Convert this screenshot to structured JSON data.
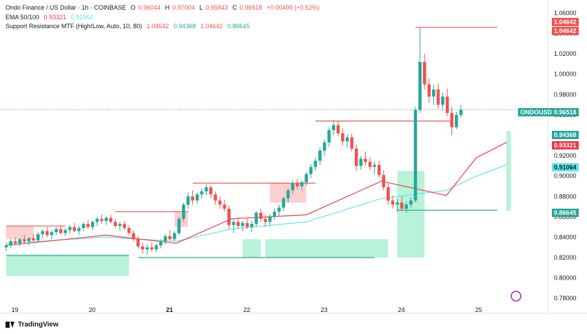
{
  "header": {
    "symbol_line": "Ondo Finance / US Dollar · 1h · COINBASE",
    "ohlc": {
      "o_label": "O",
      "o": "0.96044",
      "h_label": "H",
      "h": "0.97004",
      "l_label": "L",
      "l": "0.95843",
      "c_label": "C",
      "c": "0.96518",
      "chg": "+0.00499 (+0.52%)"
    },
    "ema_line": {
      "label": "EMA 50/100",
      "v1": "0.93321",
      "v2": "0.91064"
    },
    "sr_line": {
      "label": "Support Resistance MTF (High/Low, Auto, 10, 80)",
      "v1": "1.04642",
      "v2": "0.94368",
      "v3": "1.04642",
      "v4": "0.86645"
    }
  },
  "price_badges": {
    "top_a": "1.04642",
    "top_b": "1.04642",
    "ticker": "ONDOUSD",
    "last": "0.96518",
    "sr_low": "0.94368",
    "ema50": "0.93321",
    "ema100": "0.91064",
    "support": "0.86645"
  },
  "branding": {
    "name": "TradingView"
  },
  "colors": {
    "up": "#26a69a",
    "down": "#ef5350",
    "ema50": "#f23645",
    "ema100": "#5ee7ea",
    "resistance": "#f7a9a8",
    "support": "#7ee8b8"
  },
  "chart_data": {
    "type": "candlestick",
    "ylim": [
      0.77,
      1.062
    ],
    "y_ticks": [
      "1.06000",
      "1.04000",
      "1.02000",
      "1.00000",
      "0.98000",
      "0.96000",
      "0.94000",
      "0.92000",
      "0.90000",
      "0.88000",
      "0.86000",
      "0.84000",
      "0.82000",
      "0.80000",
      "0.78000"
    ],
    "x_ticks": [
      "19",
      "20",
      "21",
      "22",
      "23",
      "24",
      "25"
    ],
    "ohlc": [
      [
        0.83,
        0.834,
        0.826,
        0.832
      ],
      [
        0.832,
        0.838,
        0.829,
        0.836
      ],
      [
        0.836,
        0.84,
        0.832,
        0.834
      ],
      [
        0.834,
        0.839,
        0.831,
        0.838
      ],
      [
        0.838,
        0.842,
        0.834,
        0.836
      ],
      [
        0.836,
        0.84,
        0.832,
        0.839
      ],
      [
        0.839,
        0.843,
        0.836,
        0.837
      ],
      [
        0.837,
        0.845,
        0.835,
        0.843
      ],
      [
        0.843,
        0.848,
        0.839,
        0.846
      ],
      [
        0.846,
        0.85,
        0.84,
        0.842
      ],
      [
        0.842,
        0.847,
        0.838,
        0.845
      ],
      [
        0.845,
        0.85,
        0.842,
        0.848
      ],
      [
        0.848,
        0.852,
        0.843,
        0.844
      ],
      [
        0.844,
        0.849,
        0.841,
        0.847
      ],
      [
        0.847,
        0.852,
        0.844,
        0.85
      ],
      [
        0.85,
        0.854,
        0.845,
        0.846
      ],
      [
        0.846,
        0.851,
        0.842,
        0.849
      ],
      [
        0.849,
        0.855,
        0.846,
        0.853
      ],
      [
        0.853,
        0.857,
        0.848,
        0.85
      ],
      [
        0.85,
        0.856,
        0.847,
        0.855
      ],
      [
        0.855,
        0.86,
        0.851,
        0.858
      ],
      [
        0.858,
        0.862,
        0.853,
        0.856
      ],
      [
        0.856,
        0.861,
        0.852,
        0.859
      ],
      [
        0.859,
        0.862,
        0.854,
        0.855
      ],
      [
        0.855,
        0.858,
        0.849,
        0.851
      ],
      [
        0.851,
        0.855,
        0.846,
        0.853
      ],
      [
        0.853,
        0.856,
        0.847,
        0.849
      ],
      [
        0.849,
        0.852,
        0.842,
        0.844
      ],
      [
        0.844,
        0.847,
        0.836,
        0.838
      ],
      [
        0.838,
        0.841,
        0.829,
        0.831
      ],
      [
        0.831,
        0.835,
        0.824,
        0.828
      ],
      [
        0.828,
        0.833,
        0.823,
        0.83
      ],
      [
        0.83,
        0.835,
        0.826,
        0.828
      ],
      [
        0.828,
        0.834,
        0.825,
        0.832
      ],
      [
        0.832,
        0.838,
        0.829,
        0.836
      ],
      [
        0.836,
        0.843,
        0.833,
        0.841
      ],
      [
        0.841,
        0.847,
        0.837,
        0.838
      ],
      [
        0.838,
        0.846,
        0.836,
        0.844
      ],
      [
        0.844,
        0.86,
        0.842,
        0.858
      ],
      [
        0.858,
        0.874,
        0.855,
        0.872
      ],
      [
        0.872,
        0.884,
        0.868,
        0.88
      ],
      [
        0.88,
        0.886,
        0.872,
        0.876
      ],
      [
        0.876,
        0.884,
        0.873,
        0.882
      ],
      [
        0.882,
        0.888,
        0.878,
        0.885
      ],
      [
        0.885,
        0.892,
        0.881,
        0.889
      ],
      [
        0.889,
        0.891,
        0.878,
        0.882
      ],
      [
        0.882,
        0.885,
        0.872,
        0.876
      ],
      [
        0.876,
        0.88,
        0.868,
        0.872
      ],
      [
        0.872,
        0.877,
        0.865,
        0.868
      ],
      [
        0.868,
        0.871,
        0.848,
        0.852
      ],
      [
        0.852,
        0.858,
        0.844,
        0.855
      ],
      [
        0.855,
        0.86,
        0.848,
        0.851
      ],
      [
        0.851,
        0.856,
        0.846,
        0.854
      ],
      [
        0.854,
        0.858,
        0.848,
        0.85
      ],
      [
        0.85,
        0.856,
        0.845,
        0.853
      ],
      [
        0.853,
        0.866,
        0.85,
        0.864
      ],
      [
        0.864,
        0.868,
        0.855,
        0.858
      ],
      [
        0.858,
        0.862,
        0.85,
        0.855
      ],
      [
        0.855,
        0.863,
        0.852,
        0.86
      ],
      [
        0.86,
        0.868,
        0.857,
        0.865
      ],
      [
        0.865,
        0.872,
        0.861,
        0.869
      ],
      [
        0.869,
        0.88,
        0.866,
        0.878
      ],
      [
        0.878,
        0.888,
        0.874,
        0.886
      ],
      [
        0.886,
        0.896,
        0.882,
        0.893
      ],
      [
        0.893,
        0.897,
        0.887,
        0.89
      ],
      [
        0.89,
        0.896,
        0.886,
        0.894
      ],
      [
        0.894,
        0.904,
        0.891,
        0.902
      ],
      [
        0.902,
        0.912,
        0.898,
        0.909
      ],
      [
        0.909,
        0.918,
        0.905,
        0.915
      ],
      [
        0.915,
        0.928,
        0.911,
        0.925
      ],
      [
        0.925,
        0.936,
        0.92,
        0.933
      ],
      [
        0.933,
        0.948,
        0.929,
        0.945
      ],
      [
        0.945,
        0.955,
        0.94,
        0.95
      ],
      [
        0.95,
        0.954,
        0.939,
        0.942
      ],
      [
        0.942,
        0.947,
        0.93,
        0.934
      ],
      [
        0.934,
        0.941,
        0.928,
        0.938
      ],
      [
        0.938,
        0.942,
        0.924,
        0.927
      ],
      [
        0.927,
        0.931,
        0.905,
        0.91
      ],
      [
        0.91,
        0.92,
        0.906,
        0.917
      ],
      [
        0.917,
        0.924,
        0.91,
        0.914
      ],
      [
        0.914,
        0.919,
        0.906,
        0.909
      ],
      [
        0.909,
        0.914,
        0.902,
        0.911
      ],
      [
        0.911,
        0.915,
        0.898,
        0.901
      ],
      [
        0.901,
        0.906,
        0.886,
        0.889
      ],
      [
        0.889,
        0.893,
        0.872,
        0.876
      ],
      [
        0.876,
        0.881,
        0.868,
        0.872
      ],
      [
        0.872,
        0.878,
        0.865,
        0.874
      ],
      [
        0.874,
        0.88,
        0.866,
        0.868
      ],
      [
        0.868,
        0.875,
        0.864,
        0.872
      ],
      [
        0.872,
        0.879,
        0.869,
        0.876
      ],
      [
        0.876,
        0.968,
        0.874,
        0.965
      ],
      [
        0.965,
        1.046,
        0.962,
        1.012
      ],
      [
        1.012,
        1.02,
        0.985,
        0.99
      ],
      [
        0.99,
        0.996,
        0.972,
        0.978
      ],
      [
        0.978,
        0.99,
        0.97,
        0.985
      ],
      [
        0.985,
        0.991,
        0.966,
        0.97
      ],
      [
        0.97,
        0.982,
        0.964,
        0.978
      ],
      [
        0.978,
        0.986,
        0.959,
        0.962
      ],
      [
        0.962,
        0.968,
        0.94,
        0.948
      ],
      [
        0.948,
        0.963,
        0.946,
        0.96
      ],
      [
        0.96,
        0.97,
        0.958,
        0.965
      ]
    ],
    "ema50_points": [
      [
        0,
        0.832
      ],
      [
        20,
        0.842
      ],
      [
        34,
        0.834
      ],
      [
        45,
        0.858
      ],
      [
        60,
        0.862
      ],
      [
        75,
        0.895
      ],
      [
        88,
        0.881
      ],
      [
        94,
        0.918
      ],
      [
        100,
        0.933
      ]
    ],
    "ema100_points": [
      [
        0,
        0.834
      ],
      [
        20,
        0.84
      ],
      [
        34,
        0.836
      ],
      [
        45,
        0.848
      ],
      [
        60,
        0.855
      ],
      [
        75,
        0.878
      ],
      [
        88,
        0.886
      ],
      [
        94,
        0.9
      ],
      [
        100,
        0.911
      ]
    ],
    "resistance_levels": [
      {
        "from": 0,
        "to": 13,
        "value": 0.851
      },
      {
        "from": 24,
        "to": 40,
        "value": 0.865
      },
      {
        "from": 41,
        "to": 68,
        "value": 0.893
      },
      {
        "from": 68,
        "to": 98,
        "value": 0.954
      },
      {
        "from": 90,
        "to": 108,
        "value": 1.046
      }
    ],
    "support_levels": [
      {
        "from": 0,
        "to": 27,
        "value": 0.822
      },
      {
        "from": 29,
        "to": 81,
        "value": 0.82
      },
      {
        "from": 86,
        "to": 108,
        "value": 0.8665
      }
    ]
  }
}
